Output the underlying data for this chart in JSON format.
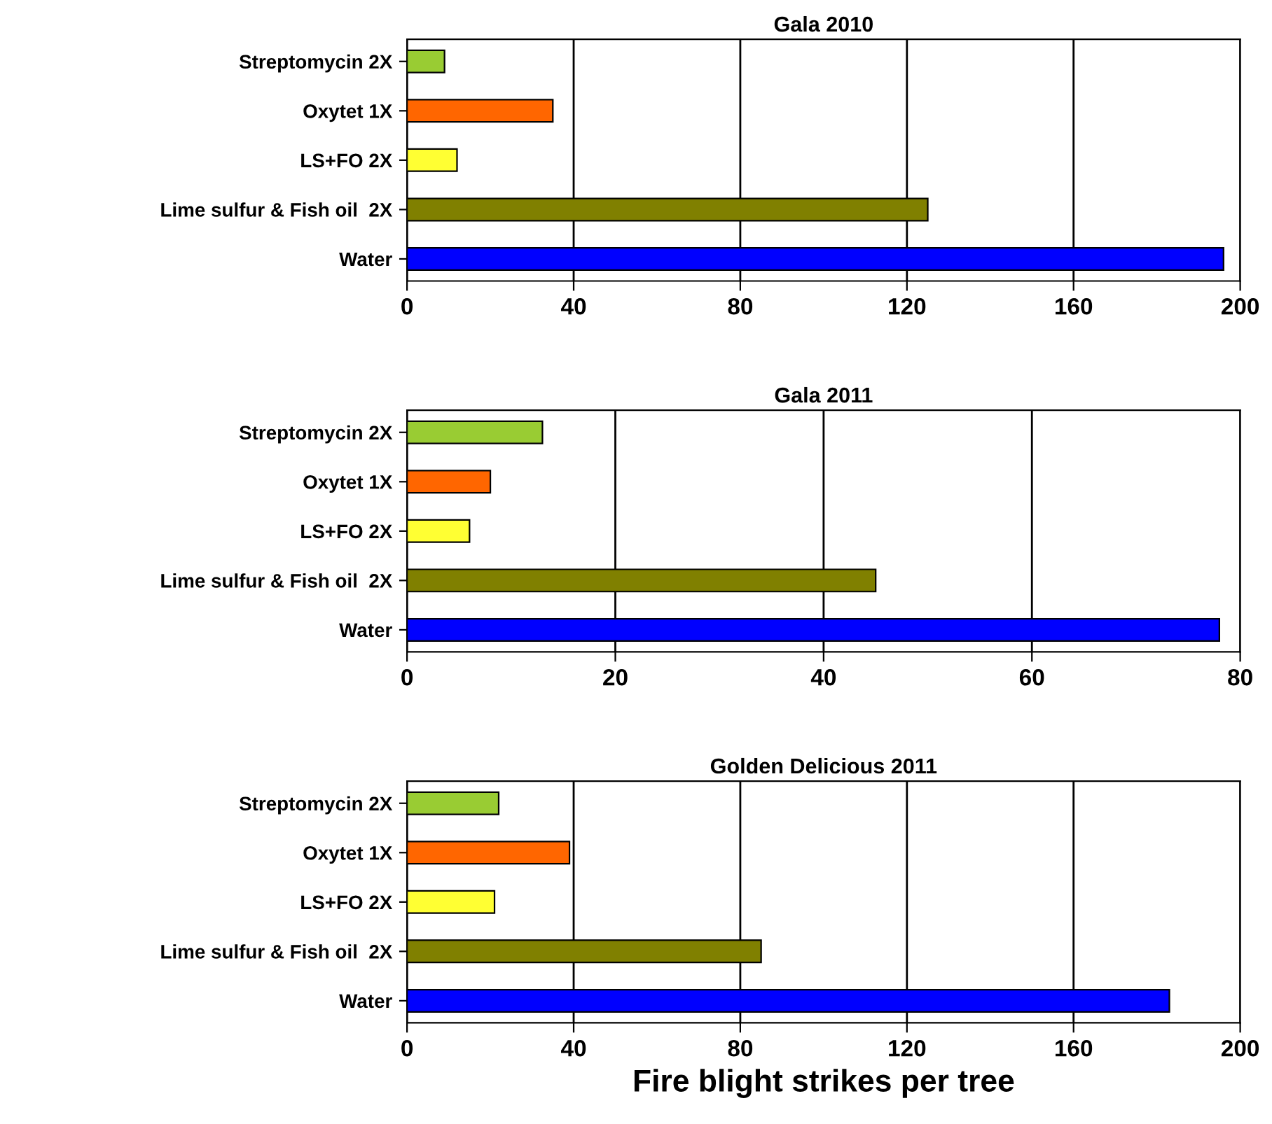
{
  "chart_data": [
    {
      "type": "bar",
      "orientation": "horizontal",
      "title": "Gala 2010",
      "categories": [
        "Streptomycin 2X",
        "Oxytet 1X",
        "LS+FO 2X",
        "Lime sulfur & Fish oil  2X",
        "Water"
      ],
      "values": [
        9,
        35,
        12,
        125,
        196
      ],
      "colors": [
        "#99cc33",
        "#ff6600",
        "#ffff33",
        "#808000",
        "#0000ff"
      ],
      "xlim": [
        0,
        200
      ],
      "xticks": [
        0,
        40,
        80,
        120,
        160,
        200
      ],
      "grid": "x"
    },
    {
      "type": "bar",
      "orientation": "horizontal",
      "title": "Gala 2011",
      "categories": [
        "Streptomycin 2X",
        "Oxytet 1X",
        "LS+FO 2X",
        "Lime sulfur & Fish oil  2X",
        "Water"
      ],
      "values": [
        13,
        8,
        6,
        45,
        78
      ],
      "colors": [
        "#99cc33",
        "#ff6600",
        "#ffff33",
        "#808000",
        "#0000ff"
      ],
      "xlim": [
        0,
        80
      ],
      "xticks": [
        0,
        20,
        40,
        60,
        80
      ],
      "grid": "x"
    },
    {
      "type": "bar",
      "orientation": "horizontal",
      "title": "Golden Delicious 2011",
      "xlabel": "Fire blight strikes per tree",
      "categories": [
        "Streptomycin 2X",
        "Oxytet 1X",
        "LS+FO 2X",
        "Lime sulfur & Fish oil  2X",
        "Water"
      ],
      "values": [
        22,
        39,
        21,
        85,
        183
      ],
      "colors": [
        "#99cc33",
        "#ff6600",
        "#ffff33",
        "#808000",
        "#0000ff"
      ],
      "xlim": [
        0,
        200
      ],
      "xticks": [
        0,
        40,
        80,
        120,
        160,
        200
      ],
      "grid": "x"
    }
  ]
}
